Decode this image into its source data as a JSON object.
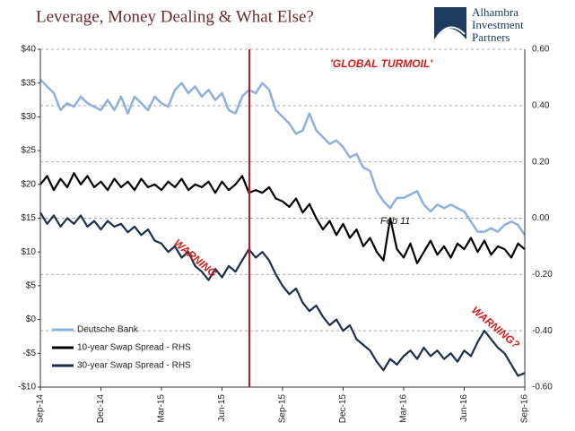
{
  "chart_data": {
    "type": "line",
    "title": "Leverage, Money Dealing & What Else?",
    "logo": [
      "Alhambra",
      "Investment",
      "Partners"
    ],
    "annotations": [
      "'GLOBAL TURMOIL'",
      "WARNING",
      "WARNING?",
      "Feb 11"
    ],
    "xticks": [
      "Sep-14",
      "Dec-14",
      "Mar-15",
      "Jun-15",
      "Sep-15",
      "Dec-15",
      "Mar-16",
      "Jun-16",
      "Sep-16"
    ],
    "ylim": [
      -10,
      40
    ],
    "yticks": [
      {
        "value": 40,
        "label": "$40"
      },
      {
        "value": 35,
        "label": "$35"
      },
      {
        "value": 30,
        "label": "$30"
      },
      {
        "value": 25,
        "label": "$25"
      },
      {
        "value": 20,
        "label": "$20"
      },
      {
        "value": 15,
        "label": "$15"
      },
      {
        "value": 10,
        "label": "$10"
      },
      {
        "value": 5,
        "label": "$5"
      },
      {
        "value": 0,
        "label": "$0"
      },
      {
        "value": -5,
        "label": "-$5"
      },
      {
        "value": -10,
        "label": "-$10"
      }
    ],
    "y2lim": [
      -0.6,
      0.6
    ],
    "y2ticks": [
      {
        "value": 0.6,
        "label": "0.60"
      },
      {
        "value": 0.4,
        "label": "0.40"
      },
      {
        "value": 0.2,
        "label": "0.20"
      },
      {
        "value": 0,
        "label": "0.00"
      },
      {
        "value": -0.2,
        "label": "-0.20"
      },
      {
        "value": -0.4,
        "label": "-0.40"
      },
      {
        "value": -0.6,
        "label": "-0.60"
      }
    ],
    "grid": true,
    "series": [
      {
        "name": "Deutsche Bank",
        "color": "#8eb0dc",
        "values": [
          35.5,
          34.5,
          33.5,
          31,
          32,
          31.5,
          33,
          32,
          31.5,
          31,
          32.5,
          31,
          33,
          30.5,
          33,
          32,
          31,
          33,
          32,
          31.5,
          34,
          35,
          33.5,
          34.5,
          33,
          34,
          32.5,
          33.5,
          31,
          30.5,
          33,
          34,
          33.5,
          35,
          34,
          31,
          30,
          29,
          27.5,
          28,
          30.5,
          28,
          27,
          26,
          26.5,
          25.5,
          24,
          24.5,
          22.5,
          22,
          19,
          17.5,
          16.5,
          18,
          18,
          18.5,
          19,
          17,
          16,
          17,
          16.5,
          17,
          16.5,
          16,
          14.5,
          13,
          13,
          13.5,
          13,
          14,
          14.5,
          14,
          12.5
        ]
      },
      {
        "name": "10-year Swap Spread - RHS",
        "color": "#000000",
        "axis": "y2",
        "values": [
          0.12,
          0.15,
          0.1,
          0.14,
          0.11,
          0.16,
          0.12,
          0.15,
          0.11,
          0.13,
          0.1,
          0.14,
          0.11,
          0.13,
          0.1,
          0.14,
          0.11,
          0.12,
          0.1,
          0.13,
          0.11,
          0.14,
          0.1,
          0.12,
          0.11,
          0.13,
          0.09,
          0.13,
          0.1,
          0.12,
          0.15,
          0.09,
          0.1,
          0.09,
          0.11,
          0.07,
          0.06,
          0.04,
          0.07,
          0.02,
          0.05,
          0.0,
          -0.04,
          -0.01,
          -0.06,
          -0.02,
          -0.07,
          -0.04,
          -0.1,
          -0.07,
          -0.12,
          -0.15,
          0.0,
          -0.11,
          -0.14,
          -0.09,
          -0.16,
          -0.12,
          -0.08,
          -0.13,
          -0.1,
          -0.14,
          -0.09,
          -0.11,
          -0.07,
          -0.12,
          -0.08,
          -0.13,
          -0.1,
          -0.11,
          -0.14,
          -0.09,
          -0.11
        ]
      },
      {
        "name": "30-year Swap Spread - RHS",
        "color": "#1b2f4d",
        "axis": "y2",
        "values": [
          0.02,
          -0.02,
          0.01,
          -0.03,
          0.0,
          -0.02,
          0.01,
          -0.03,
          -0.01,
          -0.04,
          -0.01,
          -0.03,
          -0.02,
          -0.05,
          -0.03,
          -0.06,
          -0.04,
          -0.08,
          -0.09,
          -0.12,
          -0.1,
          -0.14,
          -0.12,
          -0.17,
          -0.19,
          -0.22,
          -0.18,
          -0.21,
          -0.17,
          -0.19,
          -0.15,
          -0.11,
          -0.14,
          -0.12,
          -0.15,
          -0.2,
          -0.24,
          -0.27,
          -0.25,
          -0.3,
          -0.33,
          -0.31,
          -0.35,
          -0.38,
          -0.36,
          -0.4,
          -0.38,
          -0.43,
          -0.45,
          -0.47,
          -0.51,
          -0.54,
          -0.5,
          -0.52,
          -0.49,
          -0.47,
          -0.5,
          -0.46,
          -0.49,
          -0.47,
          -0.5,
          -0.48,
          -0.51,
          -0.47,
          -0.49,
          -0.44,
          -0.4,
          -0.43,
          -0.46,
          -0.48,
          -0.52,
          -0.56,
          -0.55
        ]
      }
    ]
  }
}
